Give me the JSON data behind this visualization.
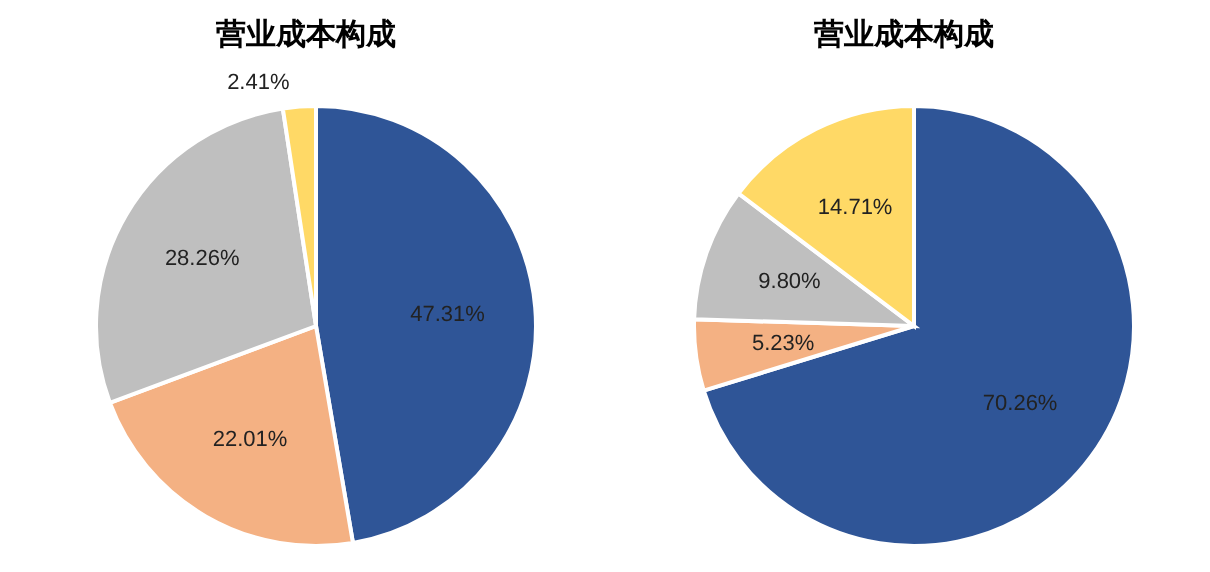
{
  "chart_data": [
    {
      "type": "pie",
      "title": "营业成本构成",
      "categories": [
        null,
        null,
        null,
        null
      ],
      "values": [
        47.31,
        22.01,
        28.26,
        2.41
      ],
      "colors": [
        "#2f5597",
        "#f4b183",
        "#bfbfbf",
        "#ffd966"
      ],
      "value_labels": [
        "47.31%",
        "22.01%",
        "28.26%",
        "2.41%"
      ]
    },
    {
      "type": "pie",
      "title": "营业成本构成",
      "categories": [
        null,
        null,
        null,
        null
      ],
      "values": [
        70.26,
        5.23,
        9.8,
        14.71
      ],
      "colors": [
        "#2f5597",
        "#f4b183",
        "#bfbfbf",
        "#ffd966"
      ],
      "value_labels": [
        "70.26%",
        "5.23%",
        "9.80%",
        "14.71%"
      ]
    }
  ]
}
